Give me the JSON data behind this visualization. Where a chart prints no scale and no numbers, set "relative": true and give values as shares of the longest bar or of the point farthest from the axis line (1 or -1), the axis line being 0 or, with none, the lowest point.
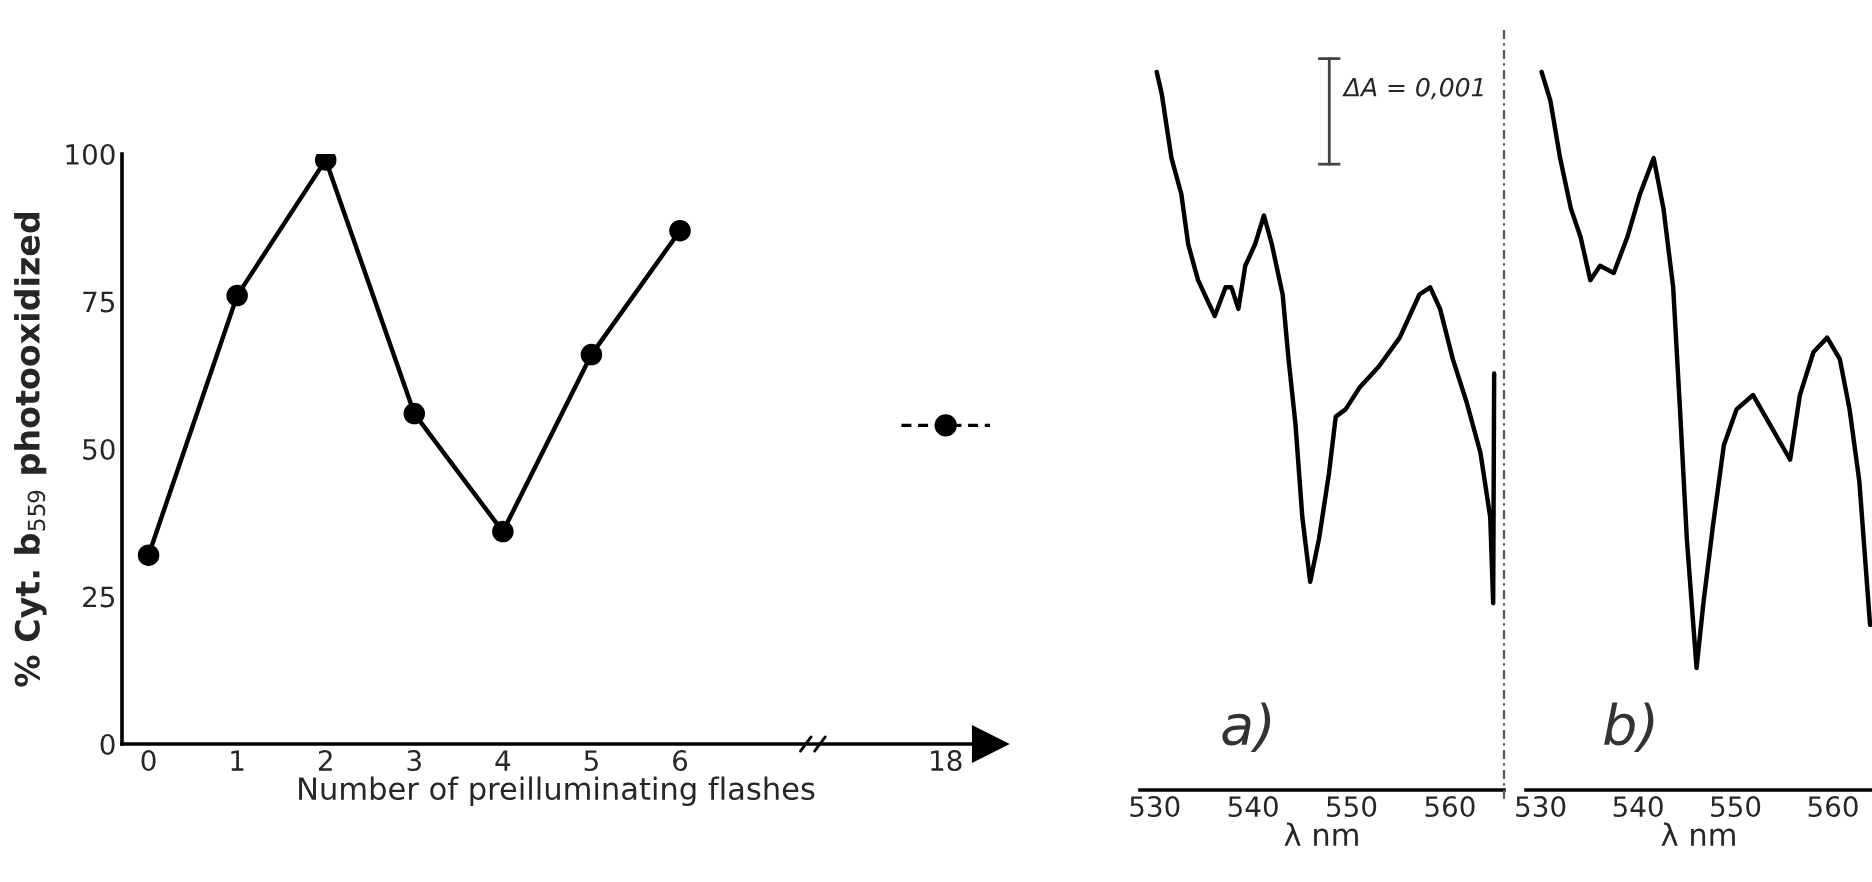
{
  "chart_data": [
    {
      "type": "line",
      "xlabel": "Number of preilluminating flashes",
      "ylabel": "% Cyt. b$_{559}$ photooxidized",
      "categories": [
        "0",
        "1",
        "2",
        "3",
        "4",
        "5",
        "6",
        null,
        null,
        "18"
      ],
      "series": [
        {
          "color": "#000000",
          "line_style": "solid",
          "values": [
            32,
            76,
            99,
            56,
            36,
            66,
            87,
            null,
            null,
            null
          ]
        },
        {
          "color": "#000000",
          "line_style": "dashed",
          "values": [
            null,
            null,
            null,
            null,
            null,
            null,
            null,
            null,
            null,
            54
          ]
        }
      ],
      "ylim": [
        0,
        100
      ],
      "yticks": [
        0,
        25,
        50,
        75,
        100
      ],
      "marker": "circle",
      "grid": false
    },
    {
      "type": "line",
      "xlabel": "λ nm",
      "relative": true,
      "tick_labels": "x",
      "marker": "none",
      "grid": false,
      "xlim": [
        528.5,
        565.5
      ],
      "xticks": [
        530,
        540,
        550,
        560
      ],
      "annotations": [
        "ΔA = 0,001",
        "a)"
      ],
      "series": [
        {
          "color": "#000000",
          "line_style": "solid",
          "x": [
            530.2,
            530.7,
            531.7,
            532.7,
            533.4,
            534.4,
            536.1,
            537.2,
            537.8,
            538.5,
            539.2,
            540.2,
            541.1,
            541.9,
            543.0,
            543.6,
            544.3,
            545.0,
            545.8,
            546.7,
            547.7,
            548.4,
            549.4,
            550.8,
            552.8,
            554.9,
            556.9,
            558.0,
            559.0,
            560.3,
            561.7,
            563.1,
            564.1,
            564.4,
            564.5
          ],
          "values": [
            1.0,
            0.97,
            0.88,
            0.83,
            0.76,
            0.71,
            0.66,
            0.7,
            0.7,
            0.67,
            0.73,
            0.76,
            0.8,
            0.76,
            0.69,
            0.6,
            0.51,
            0.38,
            0.29,
            0.35,
            0.44,
            0.52,
            0.53,
            0.56,
            0.59,
            0.63,
            0.69,
            0.7,
            0.67,
            0.6,
            0.54,
            0.47,
            0.38,
            0.26,
            0.58
          ]
        }
      ]
    },
    {
      "type": "line",
      "xlabel": "λ nm",
      "relative": true,
      "tick_labels": "x",
      "marker": "none",
      "grid": false,
      "xlim": [
        528.5,
        564
      ],
      "xticks": [
        530,
        540,
        550,
        560
      ],
      "annotations": [
        "b)"
      ],
      "series": [
        {
          "color": "#000000",
          "line_style": "solid",
          "x": [
            530.1,
            531.0,
            532.0,
            533.1,
            534.1,
            535.1,
            536.1,
            537.5,
            538.9,
            540.2,
            541.6,
            542.6,
            543.6,
            544.3,
            545.0,
            546.0,
            546.7,
            547.7,
            548.8,
            550.1,
            551.8,
            553.9,
            555.6,
            556.6,
            558.0,
            559.4,
            560.7,
            561.7,
            562.7,
            563.8
          ],
          "values": [
            1.0,
            0.96,
            0.88,
            0.81,
            0.77,
            0.71,
            0.73,
            0.72,
            0.77,
            0.83,
            0.88,
            0.81,
            0.7,
            0.53,
            0.35,
            0.17,
            0.26,
            0.37,
            0.48,
            0.53,
            0.55,
            0.5,
            0.46,
            0.55,
            0.61,
            0.63,
            0.6,
            0.53,
            0.43,
            0.23
          ]
        }
      ]
    }
  ]
}
